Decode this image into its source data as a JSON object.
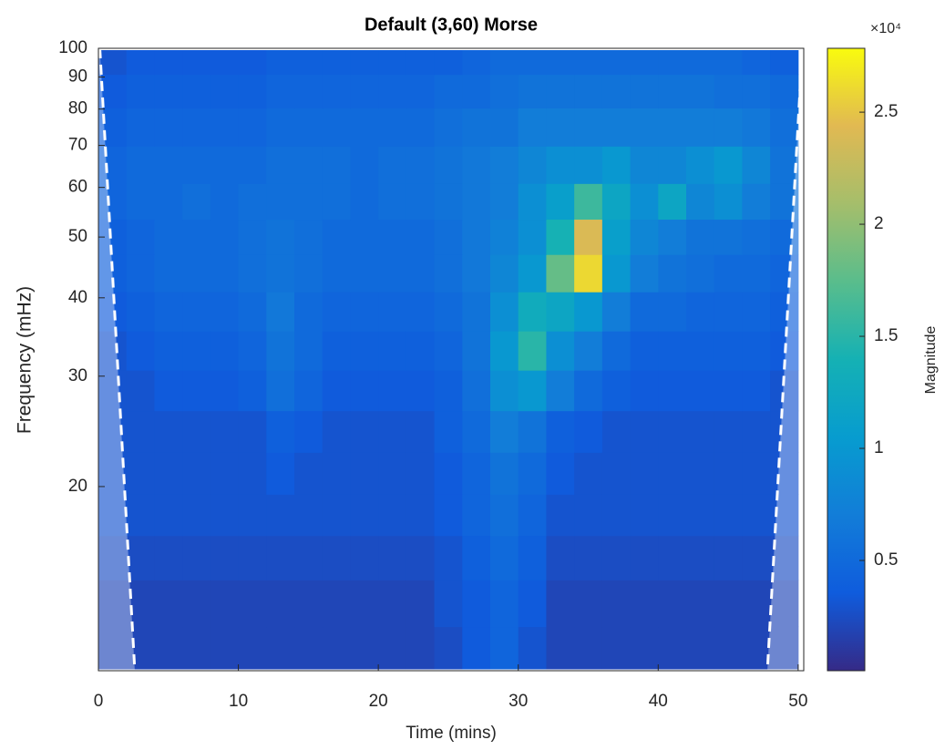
{
  "chart_data": {
    "type": "heatmap",
    "title": "Default (3,60) Morse",
    "x_label": "Time (mins)",
    "y_label": "Frequency (mHz)",
    "colorbar_label": "Magnitude",
    "colorbar_exponent": "×10⁴",
    "colormap": "parula",
    "y_scale": "log",
    "xlim": [
      0,
      50.4
    ],
    "ylim": [
      10.17,
      100
    ],
    "xticks": [
      0,
      10,
      20,
      30,
      40,
      50
    ],
    "yticks": [
      20,
      30,
      40,
      50,
      60,
      70,
      80,
      90,
      100
    ],
    "clim": [
      80,
      27850
    ],
    "cticks": [
      {
        "value": 5000,
        "label": "0.5"
      },
      {
        "value": 10000,
        "label": "1"
      },
      {
        "value": 15000,
        "label": "1.5"
      },
      {
        "value": 20000,
        "label": "2"
      },
      {
        "value": 25000,
        "label": "2.5"
      }
    ],
    "x": [
      1,
      3,
      5,
      7,
      9,
      11,
      13,
      15,
      17,
      19,
      21,
      23,
      25,
      27,
      29,
      31,
      33,
      35,
      37,
      39,
      41,
      43,
      45,
      47,
      49
    ],
    "y": [
      11,
      13,
      15.5,
      18,
      21,
      24.5,
      28.5,
      33,
      38,
      44,
      50,
      57,
      65,
      75,
      86,
      96
    ],
    "z": [
      [
        2000,
        2000,
        2000,
        2000,
        2000,
        2000,
        2000,
        2000,
        2000,
        2000,
        2000,
        2000,
        2500,
        3500,
        4500,
        3000,
        2000,
        2000,
        2000,
        2000,
        2000,
        2000,
        2000,
        2000,
        2000
      ],
      [
        2000,
        2000,
        2000,
        2000,
        2000,
        2000,
        2000,
        2000,
        2000,
        2000,
        2000,
        2000,
        3000,
        3500,
        4500,
        3500,
        2000,
        2000,
        2000,
        2000,
        2000,
        2000,
        2000,
        2000,
        2000
      ],
      [
        2500,
        2500,
        2500,
        2500,
        2500,
        2500,
        2500,
        2500,
        2500,
        2500,
        2500,
        2500,
        3000,
        4000,
        5000,
        4000,
        2500,
        2500,
        2500,
        2500,
        2500,
        2500,
        2500,
        2500,
        2500
      ],
      [
        3000,
        3000,
        3000,
        3000,
        3000,
        3000,
        3000,
        3000,
        3000,
        3000,
        3000,
        3000,
        3500,
        4500,
        5500,
        4500,
        3000,
        3000,
        3000,
        3000,
        3000,
        3000,
        3000,
        3000,
        3000
      ],
      [
        3000,
        3000,
        3000,
        3000,
        3000,
        3000,
        3500,
        3000,
        3000,
        3000,
        3000,
        3000,
        3500,
        4500,
        6000,
        5000,
        3500,
        3000,
        3000,
        3000,
        3000,
        3000,
        3000,
        3000,
        3000
      ],
      [
        3000,
        3000,
        3000,
        3000,
        3000,
        3000,
        4000,
        3500,
        3000,
        3000,
        3000,
        3000,
        4000,
        5000,
        7000,
        6000,
        4000,
        3500,
        3000,
        3000,
        3000,
        3000,
        3000,
        3000,
        3000
      ],
      [
        3000,
        3000,
        3500,
        3500,
        3500,
        4000,
        5500,
        4500,
        3500,
        3500,
        3500,
        3500,
        4000,
        5500,
        9000,
        10000,
        7000,
        5000,
        4000,
        3500,
        3500,
        3500,
        3500,
        3500,
        3000
      ],
      [
        3000,
        3500,
        4000,
        4000,
        4000,
        4500,
        6000,
        5000,
        4000,
        4000,
        4000,
        4000,
        4500,
        6000,
        10000,
        15000,
        9000,
        7000,
        5000,
        4000,
        4000,
        4000,
        4000,
        4000,
        3500
      ],
      [
        3500,
        4000,
        4500,
        4500,
        4500,
        5000,
        6500,
        5000,
        4500,
        4500,
        4500,
        4500,
        5000,
        6000,
        9000,
        13000,
        12000,
        10000,
        7000,
        5000,
        5000,
        4500,
        4500,
        4500,
        4000
      ],
      [
        4000,
        4500,
        5000,
        5000,
        5000,
        5500,
        6000,
        5500,
        5000,
        5000,
        5000,
        5000,
        5500,
        6500,
        8000,
        10000,
        18000,
        26000,
        10000,
        7000,
        6000,
        5500,
        5000,
        5000,
        4500
      ],
      [
        4000,
        4500,
        5000,
        5000,
        5000,
        5500,
        6000,
        5500,
        5000,
        5000,
        5000,
        5000,
        5500,
        6500,
        7500,
        9000,
        14000,
        24000,
        11000,
        8000,
        7000,
        6000,
        6000,
        5500,
        5000
      ],
      [
        4500,
        5000,
        5000,
        5500,
        5000,
        5500,
        5500,
        5500,
        5500,
        5000,
        5500,
        5500,
        6000,
        6500,
        7000,
        9000,
        11000,
        16000,
        12000,
        9000,
        12000,
        8000,
        9000,
        7000,
        6000
      ],
      [
        4500,
        5000,
        5000,
        5000,
        5000,
        5000,
        5500,
        5500,
        5500,
        5000,
        5500,
        5500,
        6000,
        6500,
        7000,
        8000,
        9000,
        9000,
        10000,
        8000,
        8000,
        9000,
        10000,
        8000,
        6000
      ],
      [
        4000,
        4500,
        4500,
        4500,
        4500,
        4500,
        5000,
        5000,
        5000,
        5000,
        5000,
        5000,
        5500,
        6000,
        6000,
        7000,
        7000,
        7000,
        7000,
        7000,
        7000,
        7000,
        7000,
        6500,
        5500
      ],
      [
        3500,
        4000,
        4000,
        4000,
        4000,
        4000,
        4500,
        4500,
        4500,
        4500,
        4500,
        4500,
        5000,
        5000,
        5500,
        6000,
        6000,
        6000,
        6000,
        6000,
        6000,
        6000,
        5500,
        5500,
        5000
      ],
      [
        3000,
        3500,
        3500,
        3500,
        3500,
        3500,
        4000,
        4000,
        4000,
        4000,
        4000,
        4000,
        4000,
        4500,
        5000,
        5000,
        5000,
        5000,
        5000,
        5000,
        5000,
        5000,
        5000,
        4500,
        4000
      ]
    ],
    "coi": [
      {
        "x": [
          0.1,
          2.6
        ],
        "y": [
          100,
          10.17
        ]
      },
      {
        "x": [
          50.3,
          47.8
        ],
        "y": [
          100,
          10.17
        ]
      }
    ]
  }
}
